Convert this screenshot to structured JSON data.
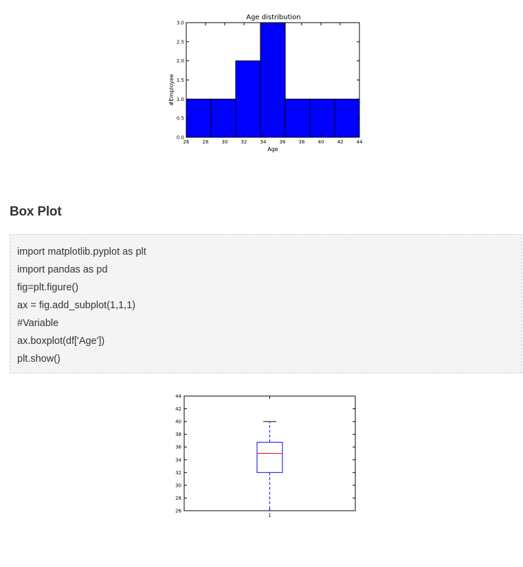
{
  "section": {
    "heading": "Box Plot"
  },
  "code": {
    "lines": [
      "import matplotlib.pyplot as plt",
      "import pandas as pd",
      "fig=plt.figure()",
      "ax = fig.add_subplot(1,1,1)",
      "#Variable",
      "ax.boxplot(df['Age'])",
      "plt.show()"
    ]
  },
  "colors": {
    "bar_fill": "#0000ff",
    "box_stroke": "#0000ff",
    "median_line": "#ff0000",
    "whisker": "#0000ff",
    "code_background": "#f4f4f4"
  },
  "chart_data": [
    {
      "type": "bar",
      "subtype": "histogram",
      "title": "Age distribution",
      "xlabel": "Age",
      "ylabel": "#Employee",
      "bin_edges": [
        26,
        28.57,
        31.14,
        33.71,
        36.29,
        38.86,
        41.43,
        44
      ],
      "values": [
        1,
        1,
        2,
        3,
        1,
        1,
        1
      ],
      "xlim": [
        26,
        44
      ],
      "ylim": [
        0,
        3
      ],
      "xticks": [
        "26",
        "28",
        "30",
        "32",
        "34",
        "36",
        "38",
        "40",
        "42",
        "44"
      ],
      "yticks": [
        "0.0",
        "0.5",
        "1.0",
        "1.5",
        "2.0",
        "2.5",
        "3.0"
      ],
      "grid": false
    },
    {
      "type": "box",
      "title": "",
      "xlabel": "",
      "ylabel": "",
      "categories": [
        "1"
      ],
      "whisker_low": 26,
      "q1": 32,
      "median": 35,
      "q3": 36.75,
      "whisker_high": 40,
      "ylim": [
        26,
        44
      ],
      "yticks": [
        "26",
        "28",
        "30",
        "32",
        "34",
        "36",
        "38",
        "40",
        "42",
        "44"
      ],
      "grid": false
    }
  ]
}
